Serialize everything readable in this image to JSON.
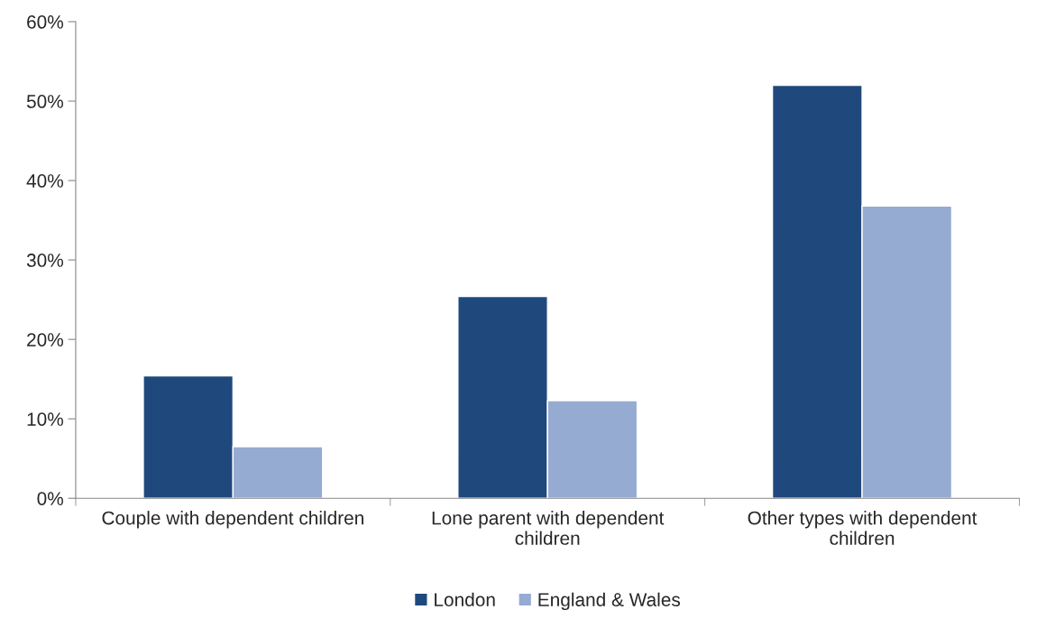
{
  "chart_data": {
    "type": "bar",
    "categories": [
      "Couple with dependent children",
      "Lone parent with dependent children",
      "Other types with dependent children"
    ],
    "series": [
      {
        "name": "London",
        "color": "#1f497d",
        "values": [
          15.4,
          25.4,
          52.0
        ]
      },
      {
        "name": "England & Wales",
        "color": "#95abd2",
        "values": [
          6.5,
          12.3,
          36.8
        ]
      }
    ],
    "ylim": [
      0,
      60
    ],
    "yticks": [
      {
        "value": 0,
        "label": "0%"
      },
      {
        "value": 10,
        "label": "10%"
      },
      {
        "value": 20,
        "label": "20%"
      },
      {
        "value": 30,
        "label": "30%"
      },
      {
        "value": 40,
        "label": "40%"
      },
      {
        "value": 50,
        "label": "50%"
      },
      {
        "value": 60,
        "label": "60%"
      }
    ],
    "grid": false,
    "legend": "bottom"
  }
}
